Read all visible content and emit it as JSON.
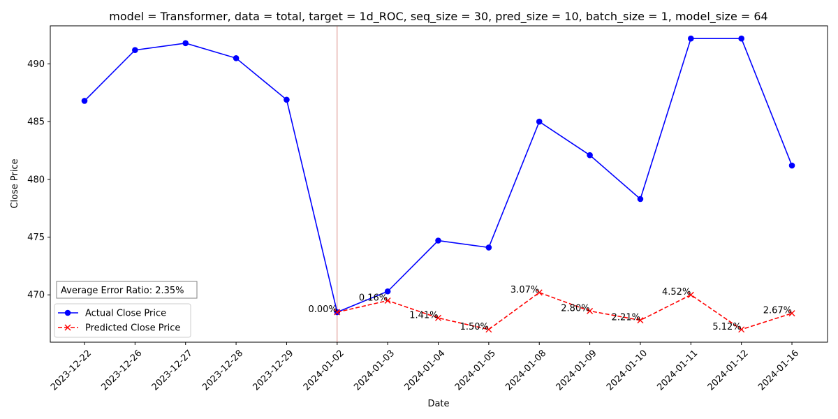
{
  "chart_data": {
    "type": "line",
    "title": "model = Transformer, data = total, target = 1d_ROC, seq_size = 30, pred_size = 10, batch_size = 1, model_size = 64",
    "xlabel": "Date",
    "ylabel": "Close Price",
    "categories": [
      "2023-12-22",
      "2023-12-26",
      "2023-12-27",
      "2023-12-28",
      "2023-12-29",
      "2024-01-02",
      "2024-01-03",
      "2024-01-04",
      "2024-01-05",
      "2024-01-08",
      "2024-01-09",
      "2024-01-10",
      "2024-01-11",
      "2024-01-12",
      "2024-01-16"
    ],
    "ylim": [
      465.9,
      493.3
    ],
    "yticks": [
      470,
      475,
      480,
      485,
      490
    ],
    "grid": false,
    "legend_position": "lower-left",
    "split_category": "2024-01-02",
    "annotation_box": "Average Error Ratio: 2.35%",
    "series": [
      {
        "name": "Actual Close Price",
        "color": "#0000ff",
        "style": "solid",
        "marker": "circle",
        "x": [
          "2023-12-22",
          "2023-12-26",
          "2023-12-27",
          "2023-12-28",
          "2023-12-29",
          "2024-01-02",
          "2024-01-03",
          "2024-01-04",
          "2024-01-05",
          "2024-01-08",
          "2024-01-09",
          "2024-01-10",
          "2024-01-11",
          "2024-01-12",
          "2024-01-16"
        ],
        "values": [
          486.8,
          491.2,
          491.8,
          490.5,
          486.9,
          468.5,
          470.3,
          474.7,
          474.1,
          485.0,
          482.1,
          478.3,
          492.2,
          492.2,
          481.2
        ]
      },
      {
        "name": "Predicted Close Price",
        "color": "#ff0000",
        "style": "dashed",
        "marker": "x",
        "x": [
          "2024-01-02",
          "2024-01-03",
          "2024-01-04",
          "2024-01-05",
          "2024-01-08",
          "2024-01-09",
          "2024-01-10",
          "2024-01-11",
          "2024-01-12",
          "2024-01-16"
        ],
        "values": [
          468.5,
          469.5,
          468.0,
          467.0,
          470.2,
          468.6,
          467.8,
          470.0,
          467.0,
          468.4
        ],
        "labels": [
          "0.00%",
          "0.16%",
          "1.41%",
          "1.50%",
          "3.07%",
          "2.80%",
          "2.21%",
          "4.52%",
          "5.12%",
          "2.67%"
        ]
      }
    ]
  }
}
